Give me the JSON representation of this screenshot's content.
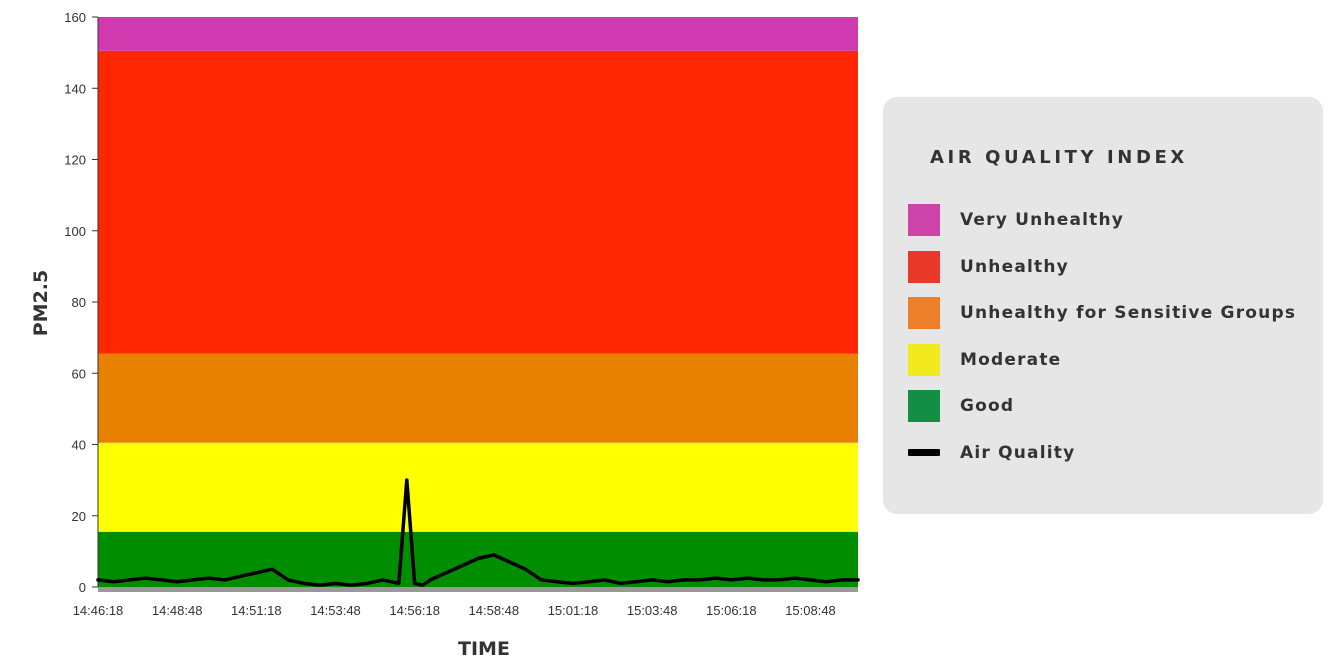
{
  "chart_data": {
    "type": "area",
    "title": "",
    "xlabel": "TIME",
    "ylabel": "PM2.5",
    "ylim": [
      0,
      160
    ],
    "yticks": [
      0,
      20,
      40,
      60,
      80,
      100,
      120,
      140,
      160
    ],
    "xlim": [
      "14:46:18",
      "15:10:18"
    ],
    "xticks": [
      "14:46:18",
      "14:48:48",
      "14:51:18",
      "14:53:48",
      "14:56:18",
      "14:58:48",
      "15:01:18",
      "15:03:48",
      "15:06:18",
      "15:08:48"
    ],
    "bands": [
      {
        "name": "Good",
        "from": 0,
        "to": 15.5,
        "color": "#008e00"
      },
      {
        "name": "Moderate",
        "from": 15.5,
        "to": 40.5,
        "color": "#ffff00"
      },
      {
        "name": "Unhealthy for Sensitive Groups",
        "from": 40.5,
        "to": 65.5,
        "color": "#e88000"
      },
      {
        "name": "Unhealthy",
        "from": 65.5,
        "to": 150.5,
        "color": "#ff2600"
      },
      {
        "name": "Very Unhealthy",
        "from": 150.5,
        "to": 160,
        "color": "#d03aaf"
      }
    ],
    "series": [
      {
        "name": "Air Quality",
        "color": "#000000",
        "x": [
          "14:46:18",
          "14:46:48",
          "14:47:18",
          "14:47:48",
          "14:48:18",
          "14:48:48",
          "14:49:18",
          "14:49:48",
          "14:50:18",
          "14:50:48",
          "14:51:18",
          "14:51:48",
          "14:52:18",
          "14:52:48",
          "14:53:18",
          "14:53:48",
          "14:54:18",
          "14:54:48",
          "14:55:18",
          "14:55:48",
          "14:56:03",
          "14:56:18",
          "14:56:33",
          "14:56:48",
          "14:57:18",
          "14:57:48",
          "14:58:18",
          "14:58:48",
          "14:59:18",
          "14:59:48",
          "15:00:18",
          "15:00:48",
          "15:01:18",
          "15:01:48",
          "15:02:18",
          "15:02:48",
          "15:03:18",
          "15:03:48",
          "15:04:18",
          "15:04:48",
          "15:05:18",
          "15:05:48",
          "15:06:18",
          "15:06:48",
          "15:07:18",
          "15:07:48",
          "15:08:18",
          "15:08:48",
          "15:09:18",
          "15:09:48",
          "15:10:18"
        ],
        "values": [
          2,
          1.5,
          2,
          2.5,
          2,
          1.5,
          2,
          2.5,
          2,
          3,
          4,
          5,
          2,
          1,
          0.5,
          1,
          0.5,
          1,
          2,
          1,
          30,
          1,
          0.5,
          2,
          4,
          6,
          8,
          9,
          7,
          5,
          2,
          1.5,
          1,
          1.5,
          2,
          1,
          1.5,
          2,
          1.5,
          2,
          2,
          2.5,
          2,
          2.5,
          2,
          2,
          2.5,
          2,
          1.5,
          2,
          2
        ]
      }
    ],
    "legend": {
      "title": "AIR QUALITY INDEX",
      "position": "right",
      "items": [
        {
          "label": "Very Unhealthy",
          "color": "#cc44a8",
          "kind": "box"
        },
        {
          "label": "Unhealthy",
          "color": "#e8382a",
          "kind": "box"
        },
        {
          "label": "Unhealthy for Sensitive Groups",
          "color": "#ee7f2a",
          "kind": "box"
        },
        {
          "label": "Moderate",
          "color": "#f2e81e",
          "kind": "box"
        },
        {
          "label": "Good",
          "color": "#138e45",
          "kind": "box"
        },
        {
          "label": "Air Quality",
          "color": "#000000",
          "kind": "line"
        }
      ]
    },
    "grid": false
  }
}
